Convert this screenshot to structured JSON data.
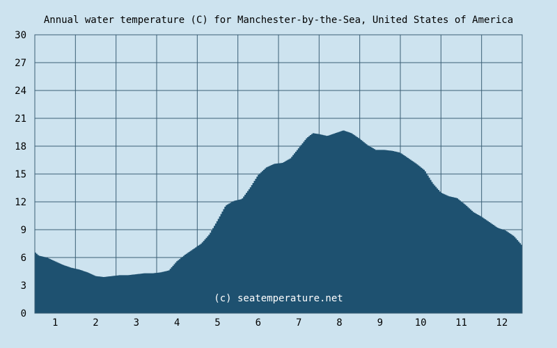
{
  "chart_data": {
    "type": "area",
    "title": "Annual water temperature (C) for Manchester-by-the-Sea, United States of America",
    "watermark": "(c) seatemperature.net",
    "xlabel": "",
    "ylabel": "",
    "ylim": [
      0,
      30
    ],
    "xlim": [
      0.5,
      12.5
    ],
    "y_ticks": [
      0,
      3,
      6,
      9,
      12,
      15,
      18,
      21,
      24,
      27,
      30
    ],
    "x_ticks": [
      {
        "value": 1,
        "label": "1"
      },
      {
        "value": 2,
        "label": "2"
      },
      {
        "value": 3,
        "label": "3"
      },
      {
        "value": 4,
        "label": "4"
      },
      {
        "value": 5,
        "label": "5"
      },
      {
        "value": 6,
        "label": "6"
      },
      {
        "value": 7,
        "label": "7"
      },
      {
        "value": 8,
        "label": "8"
      },
      {
        "value": 9,
        "label": "9"
      },
      {
        "value": 10,
        "label": "10"
      },
      {
        "value": 11,
        "label": "11"
      },
      {
        "value": 12,
        "label": "12"
      }
    ],
    "grid": true,
    "colors": {
      "background": "#cde3ef",
      "fill": "#1e5170",
      "grid": "#3b5f76"
    },
    "series": [
      {
        "x": [
          0.5,
          0.6,
          0.8,
          1.0,
          1.2,
          1.4,
          1.6,
          1.8,
          2.0,
          2.2,
          2.4,
          2.6,
          2.8,
          3.0,
          3.2,
          3.4,
          3.6,
          3.8,
          4.0,
          4.2,
          4.4,
          4.6,
          4.8,
          5.0,
          5.2,
          5.4,
          5.6,
          5.8,
          6.0,
          6.2,
          6.4,
          6.6,
          6.8,
          7.0,
          7.2,
          7.35,
          7.5,
          7.7,
          7.9,
          8.1,
          8.3,
          8.5,
          8.7,
          8.9,
          9.1,
          9.3,
          9.5,
          9.7,
          9.9,
          10.1,
          10.3,
          10.5,
          10.7,
          10.9,
          11.1,
          11.3,
          11.5,
          11.7,
          11.9,
          12.1,
          12.3,
          12.5
        ],
        "values": [
          6.6,
          6.2,
          6.0,
          5.6,
          5.2,
          4.9,
          4.7,
          4.4,
          4.0,
          3.9,
          4.0,
          4.1,
          4.1,
          4.2,
          4.3,
          4.3,
          4.4,
          4.6,
          5.6,
          6.3,
          6.9,
          7.5,
          8.5,
          10.0,
          11.6,
          12.1,
          12.3,
          13.5,
          14.9,
          15.7,
          16.1,
          16.2,
          16.7,
          17.8,
          18.9,
          19.4,
          19.3,
          19.1,
          19.4,
          19.7,
          19.4,
          18.8,
          18.1,
          17.6,
          17.6,
          17.5,
          17.3,
          16.7,
          16.1,
          15.4,
          14.0,
          13.0,
          12.6,
          12.4,
          11.7,
          10.9,
          10.4,
          9.8,
          9.2,
          8.9,
          8.3,
          7.3
        ]
      }
    ]
  }
}
